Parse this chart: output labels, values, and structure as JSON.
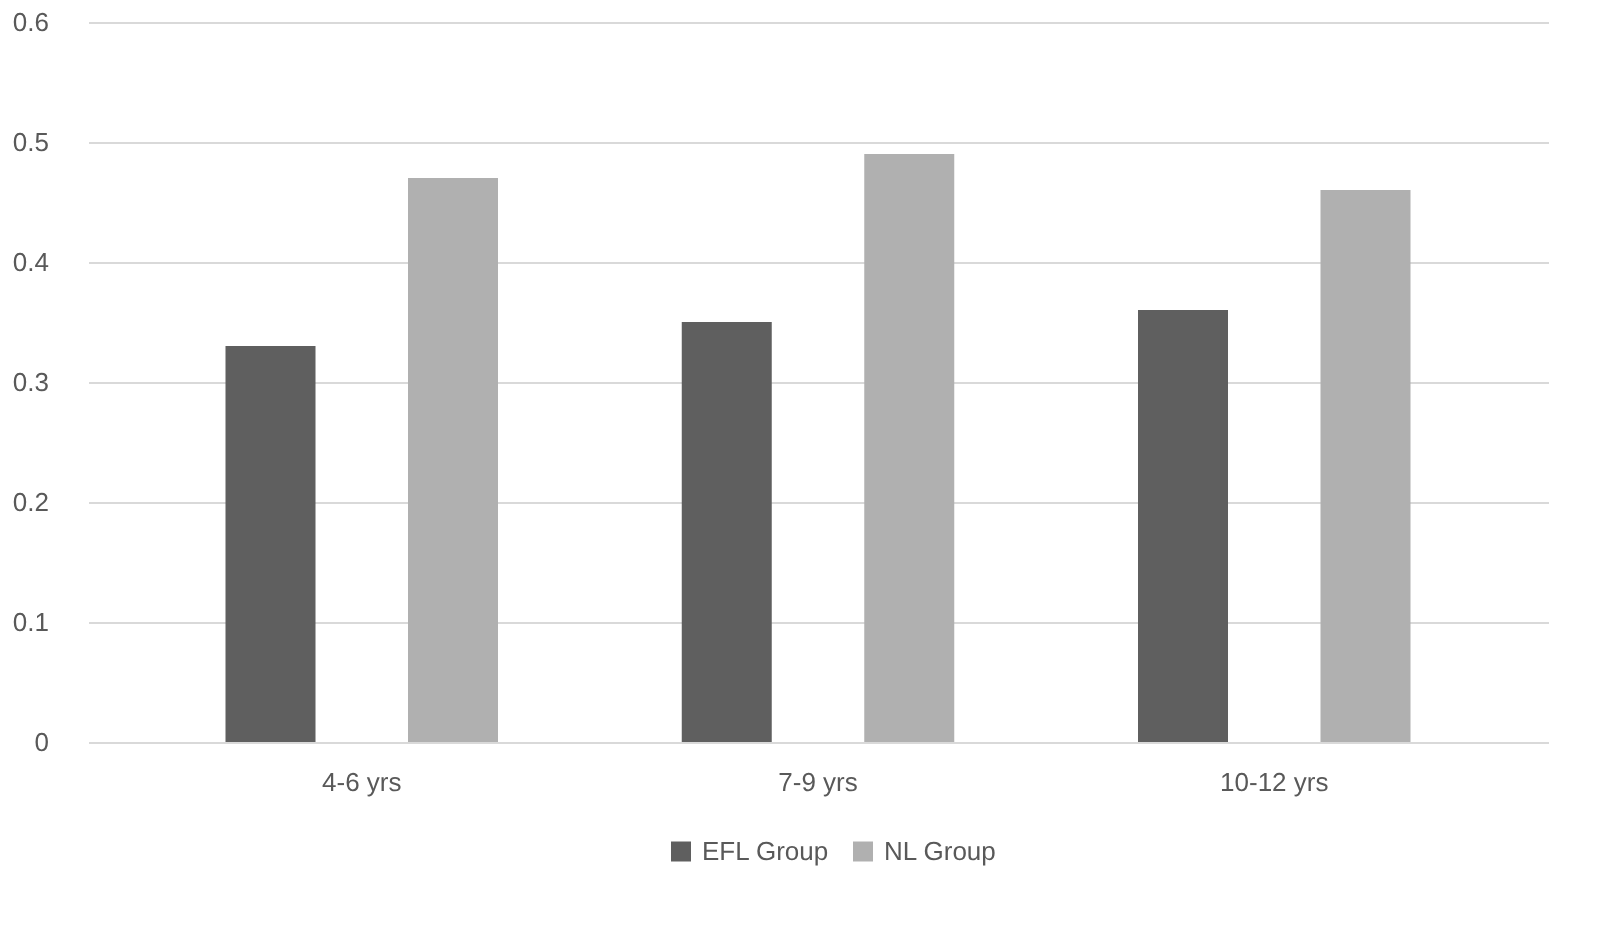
{
  "chart_data": {
    "type": "bar",
    "categories": [
      "4-6 yrs",
      "7-9 yrs",
      "10-12 yrs"
    ],
    "series": [
      {
        "name": "EFL Group",
        "color": "#5f5f5f",
        "values": [
          0.33,
          0.35,
          0.36
        ]
      },
      {
        "name": "NL Group",
        "color": "#b0b0b0",
        "values": [
          0.47,
          0.49,
          0.46
        ]
      }
    ],
    "ylim": [
      0,
      0.6
    ],
    "yticks": [
      0,
      0.1,
      0.2,
      0.3,
      0.4,
      0.5,
      0.6
    ],
    "grid": "y",
    "legend": "bottom"
  }
}
